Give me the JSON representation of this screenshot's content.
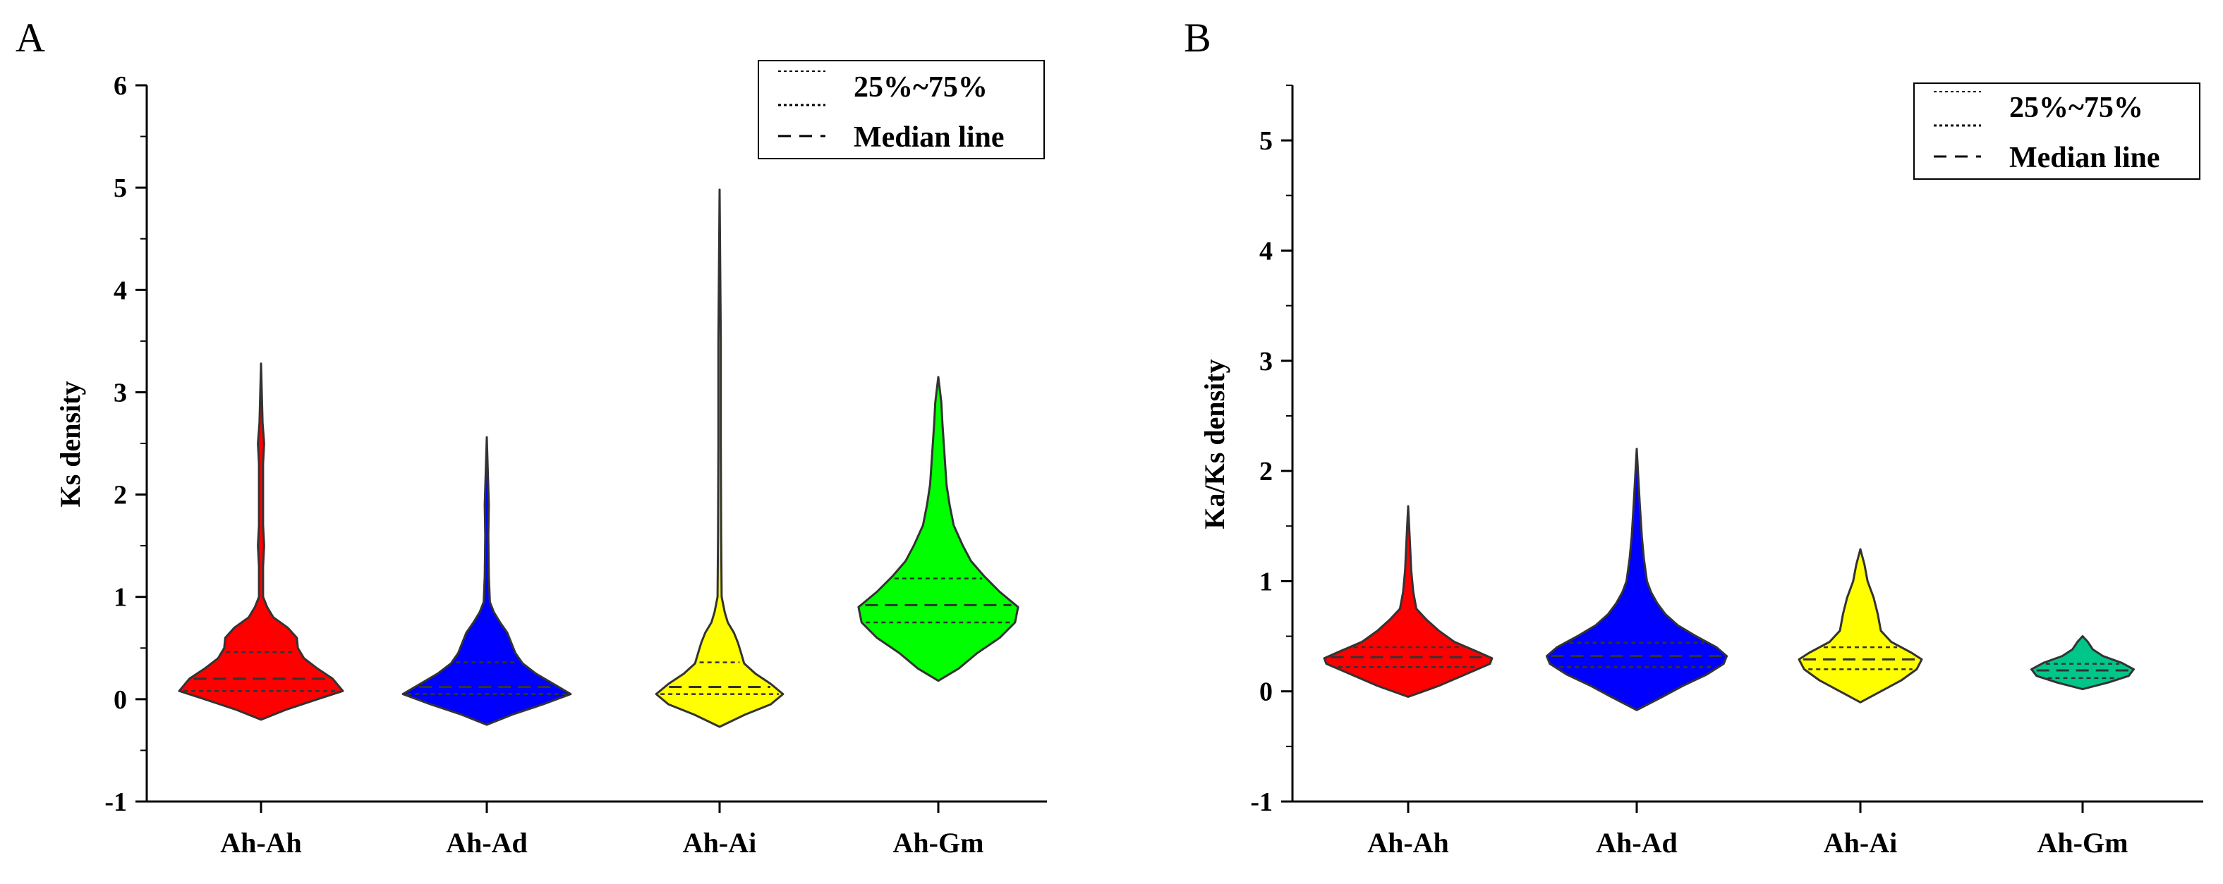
{
  "panels": {
    "A": {
      "letter": "A",
      "ylabel": "Ks density",
      "legend": {
        "quartile_label": "25%~75%",
        "median_label": "Median line"
      }
    },
    "B": {
      "letter": "B",
      "ylabel": "Ka/Ks density",
      "legend": {
        "quartile_label": "25%~75%",
        "median_label": "Median line"
      }
    }
  },
  "chart_data": [
    {
      "type": "violin",
      "panel": "A",
      "title": "",
      "xlabel": "",
      "ylabel": "Ks density",
      "ylim": [
        -1,
        6
      ],
      "yticks": [
        -1,
        0,
        1,
        2,
        3,
        4,
        5,
        6
      ],
      "categories": [
        "Ah-Ah",
        "Ah-Ad",
        "Ah-Ai",
        "Ah-Gm"
      ],
      "legend": [
        "25%~75%",
        "Median line"
      ],
      "series": [
        {
          "name": "Ah-Ah",
          "color": "#ff0000",
          "min": -0.2,
          "max": 3.28,
          "q1": 0.08,
          "median": 0.2,
          "q3": 0.46,
          "profile": [
            [
              -0.2,
              0.0
            ],
            [
              -0.1,
              0.25
            ],
            [
              0.0,
              0.55
            ],
            [
              0.08,
              0.8
            ],
            [
              0.2,
              0.7
            ],
            [
              0.3,
              0.55
            ],
            [
              0.4,
              0.42
            ],
            [
              0.5,
              0.36
            ],
            [
              0.6,
              0.35
            ],
            [
              0.7,
              0.26
            ],
            [
              0.8,
              0.12
            ],
            [
              0.9,
              0.06
            ],
            [
              1.0,
              0.02
            ],
            [
              1.3,
              0.02
            ],
            [
              1.5,
              0.03
            ],
            [
              1.7,
              0.02
            ],
            [
              2.3,
              0.02
            ],
            [
              2.5,
              0.03
            ],
            [
              2.7,
              0.015
            ],
            [
              3.28,
              0.0
            ]
          ]
        },
        {
          "name": "Ah-Ad",
          "color": "#0000ff",
          "min": -0.25,
          "max": 2.56,
          "q1": 0.05,
          "median": 0.12,
          "q3": 0.36,
          "profile": [
            [
              -0.25,
              0.0
            ],
            [
              -0.15,
              0.25
            ],
            [
              -0.05,
              0.55
            ],
            [
              0.05,
              0.82
            ],
            [
              0.15,
              0.65
            ],
            [
              0.25,
              0.48
            ],
            [
              0.35,
              0.35
            ],
            [
              0.45,
              0.28
            ],
            [
              0.55,
              0.24
            ],
            [
              0.65,
              0.2
            ],
            [
              0.75,
              0.13
            ],
            [
              0.85,
              0.07
            ],
            [
              0.95,
              0.03
            ],
            [
              1.2,
              0.02
            ],
            [
              1.6,
              0.015
            ],
            [
              1.9,
              0.02
            ],
            [
              2.56,
              0.0
            ]
          ]
        },
        {
          "name": "Ah-Ai",
          "color": "#ffff00",
          "min": -0.27,
          "max": 4.98,
          "q1": 0.05,
          "median": 0.12,
          "q3": 0.36,
          "profile": [
            [
              -0.27,
              0.0
            ],
            [
              -0.15,
              0.25
            ],
            [
              -0.05,
              0.5
            ],
            [
              0.05,
              0.62
            ],
            [
              0.15,
              0.5
            ],
            [
              0.25,
              0.35
            ],
            [
              0.35,
              0.24
            ],
            [
              0.45,
              0.21
            ],
            [
              0.55,
              0.18
            ],
            [
              0.65,
              0.14
            ],
            [
              0.75,
              0.08
            ],
            [
              0.85,
              0.05
            ],
            [
              1.0,
              0.02
            ],
            [
              1.6,
              0.015
            ],
            [
              2.5,
              0.012
            ],
            [
              3.5,
              0.012
            ],
            [
              4.98,
              0.0
            ]
          ]
        },
        {
          "name": "Ah-Gm",
          "color": "#00ff00",
          "min": 0.18,
          "max": 3.15,
          "q1": 0.75,
          "median": 0.92,
          "q3": 1.18,
          "profile": [
            [
              0.18,
              0.0
            ],
            [
              0.3,
              0.2
            ],
            [
              0.45,
              0.38
            ],
            [
              0.6,
              0.6
            ],
            [
              0.75,
              0.75
            ],
            [
              0.9,
              0.78
            ],
            [
              1.05,
              0.6
            ],
            [
              1.2,
              0.45
            ],
            [
              1.35,
              0.32
            ],
            [
              1.5,
              0.24
            ],
            [
              1.7,
              0.15
            ],
            [
              1.9,
              0.11
            ],
            [
              2.1,
              0.08
            ],
            [
              2.4,
              0.06
            ],
            [
              2.7,
              0.04
            ],
            [
              2.9,
              0.03
            ],
            [
              3.15,
              0.0
            ]
          ]
        }
      ]
    },
    {
      "type": "violin",
      "panel": "B",
      "title": "",
      "xlabel": "",
      "ylabel": "Ka/Ks density",
      "ylim": [
        -1,
        5.5
      ],
      "yticks": [
        -1,
        0,
        1,
        2,
        3,
        4,
        5
      ],
      "categories": [
        "Ah-Ah",
        "Ah-Ad",
        "Ah-Ai",
        "Ah-Gm"
      ],
      "legend": [
        "25%~75%",
        "Median line"
      ],
      "series": [
        {
          "name": "Ah-Ah",
          "color": "#ff0000",
          "min": -0.05,
          "max": 1.68,
          "q1": 0.22,
          "median": 0.31,
          "q3": 0.4,
          "profile": [
            [
              -0.05,
              0.0
            ],
            [
              0.05,
              0.3
            ],
            [
              0.15,
              0.55
            ],
            [
              0.25,
              0.8
            ],
            [
              0.3,
              0.82
            ],
            [
              0.35,
              0.7
            ],
            [
              0.45,
              0.45
            ],
            [
              0.55,
              0.3
            ],
            [
              0.65,
              0.18
            ],
            [
              0.75,
              0.08
            ],
            [
              0.9,
              0.05
            ],
            [
              1.1,
              0.03
            ],
            [
              1.3,
              0.02
            ],
            [
              1.68,
              0.0
            ]
          ]
        },
        {
          "name": "Ah-Ad",
          "color": "#0000ff",
          "min": -0.17,
          "max": 2.2,
          "q1": 0.22,
          "median": 0.32,
          "q3": 0.44,
          "profile": [
            [
              -0.17,
              0.0
            ],
            [
              -0.05,
              0.25
            ],
            [
              0.05,
              0.45
            ],
            [
              0.15,
              0.68
            ],
            [
              0.25,
              0.85
            ],
            [
              0.32,
              0.88
            ],
            [
              0.4,
              0.78
            ],
            [
              0.5,
              0.58
            ],
            [
              0.6,
              0.4
            ],
            [
              0.7,
              0.28
            ],
            [
              0.8,
              0.2
            ],
            [
              0.9,
              0.14
            ],
            [
              1.0,
              0.1
            ],
            [
              1.2,
              0.07
            ],
            [
              1.4,
              0.05
            ],
            [
              1.7,
              0.03
            ],
            [
              2.2,
              0.0
            ]
          ]
        },
        {
          "name": "Ah-Ai",
          "color": "#ffff00",
          "min": -0.1,
          "max": 1.29,
          "q1": 0.2,
          "median": 0.29,
          "q3": 0.4,
          "profile": [
            [
              -0.1,
              0.0
            ],
            [
              0.0,
              0.2
            ],
            [
              0.1,
              0.4
            ],
            [
              0.2,
              0.55
            ],
            [
              0.29,
              0.6
            ],
            [
              0.35,
              0.5
            ],
            [
              0.45,
              0.3
            ],
            [
              0.55,
              0.2
            ],
            [
              0.7,
              0.17
            ],
            [
              0.85,
              0.13
            ],
            [
              1.0,
              0.07
            ],
            [
              1.15,
              0.04
            ],
            [
              1.29,
              0.0
            ]
          ]
        },
        {
          "name": "Ah-Gm",
          "color": "#00c68a",
          "min": 0.02,
          "max": 0.5,
          "q1": 0.12,
          "median": 0.19,
          "q3": 0.25,
          "profile": [
            [
              0.02,
              0.0
            ],
            [
              0.08,
              0.25
            ],
            [
              0.14,
              0.45
            ],
            [
              0.2,
              0.5
            ],
            [
              0.26,
              0.38
            ],
            [
              0.32,
              0.2
            ],
            [
              0.38,
              0.1
            ],
            [
              0.45,
              0.05
            ],
            [
              0.5,
              0.0
            ]
          ]
        }
      ]
    }
  ]
}
